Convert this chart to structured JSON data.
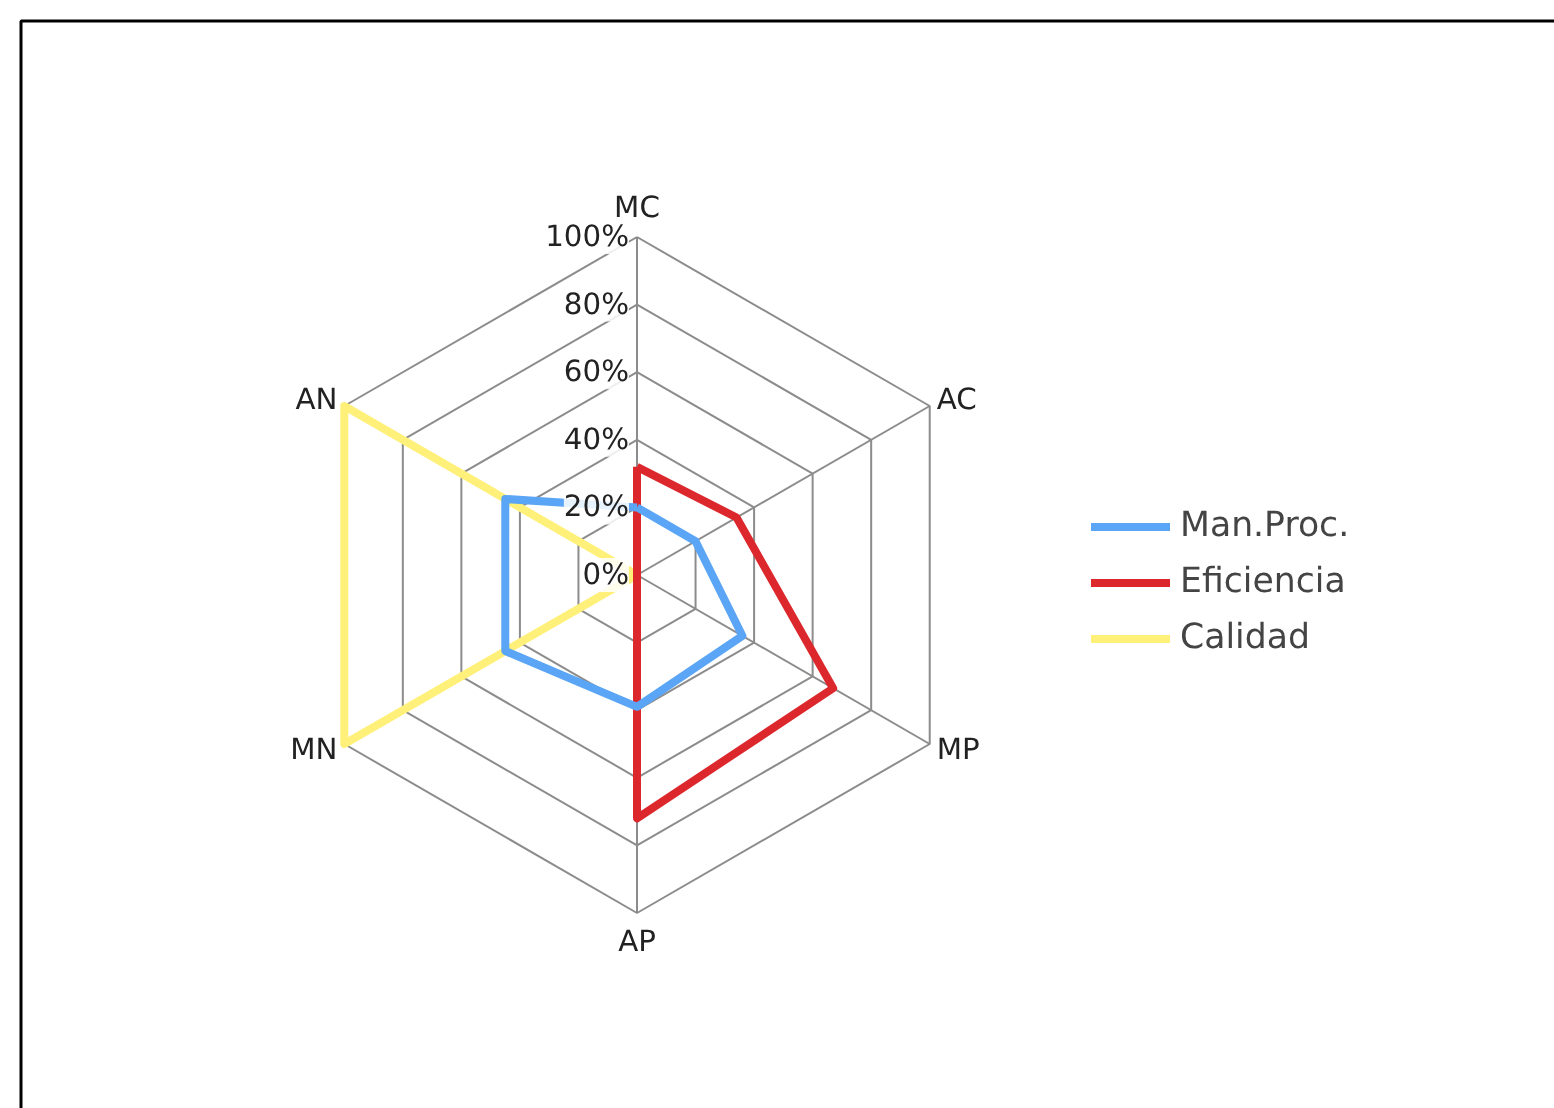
{
  "chart_data": {
    "type": "radar",
    "categories": [
      "MC",
      "AC",
      "MP",
      "AP",
      "MN",
      "AN"
    ],
    "series": [
      {
        "name": "Man.Proc.",
        "color": "#5aa5f5",
        "values": [
          20,
          20,
          36,
          39,
          45,
          45
        ]
      },
      {
        "name": "Eficiencia",
        "color": "#dc282d",
        "values": [
          32,
          34,
          67,
          72,
          0,
          0
        ]
      },
      {
        "name": "Calidad",
        "color": "#fff07a",
        "values": [
          0,
          0,
          0,
          0,
          100,
          100
        ]
      }
    ],
    "ylim": [
      0,
      100
    ],
    "yticks": [
      {
        "value": 0,
        "label": "0%"
      },
      {
        "value": 20,
        "label": "20%"
      },
      {
        "value": 40,
        "label": "40%"
      },
      {
        "value": 60,
        "label": "60%"
      },
      {
        "value": 80,
        "label": "80%"
      },
      {
        "value": 100,
        "label": "100%"
      }
    ],
    "grid": true,
    "legend": "right",
    "line_style": "solid",
    "marker": "none"
  }
}
